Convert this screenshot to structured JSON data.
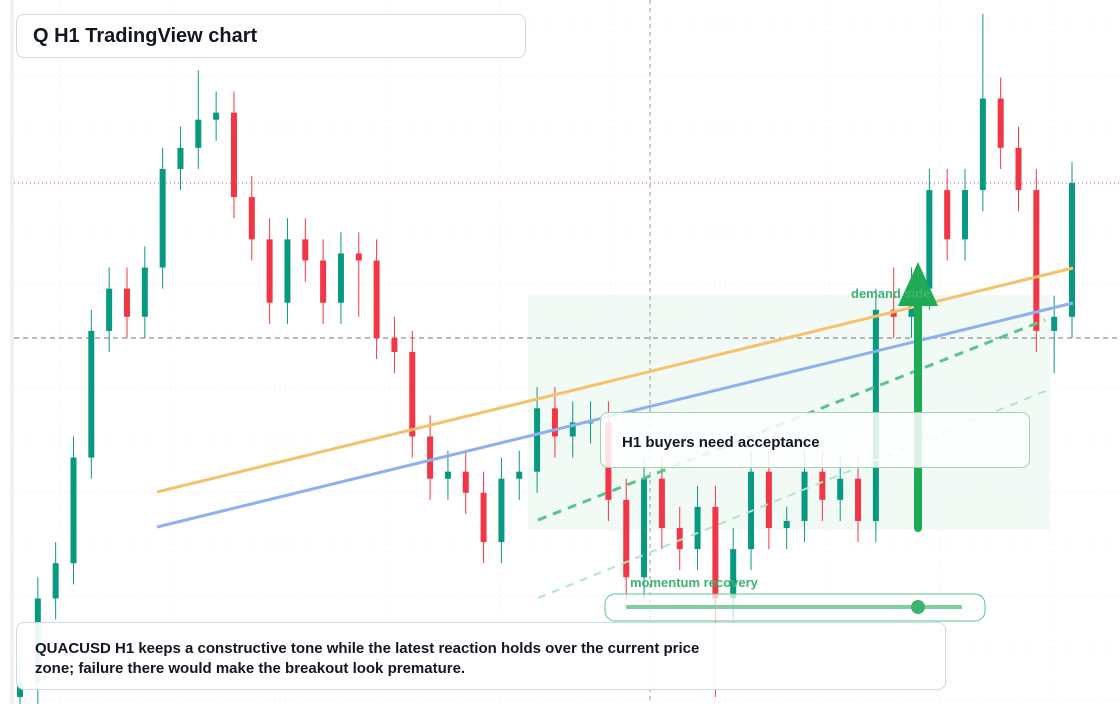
{
  "header": {
    "title": "Q H1 TradingView chart"
  },
  "chart_data": {
    "type": "candlestick",
    "ylim": [
      0,
      100
    ],
    "up_color": "#089981",
    "down_color": "#f23645",
    "open": [
      1,
      3,
      15,
      20,
      35,
      53,
      59,
      55,
      62,
      76,
      79,
      83,
      84,
      72,
      66,
      57,
      66,
      63,
      57,
      64,
      63,
      52,
      50,
      38,
      32,
      33,
      30,
      23,
      32,
      33,
      42,
      38,
      40,
      40,
      29,
      18,
      32,
      25,
      22,
      28,
      15,
      22,
      33,
      25,
      26,
      33,
      29,
      32,
      26,
      56,
      55,
      59,
      73,
      66,
      73,
      86,
      79,
      73,
      53,
      55
    ],
    "high": [
      6,
      18,
      23,
      38,
      56,
      62,
      62,
      65,
      79,
      82,
      90,
      87,
      87,
      75,
      69,
      69,
      69,
      66,
      67,
      67,
      66,
      55,
      53,
      41,
      36,
      36,
      33,
      35,
      36,
      45,
      45,
      43,
      43,
      43,
      32,
      35,
      35,
      28,
      31,
      31,
      25,
      36,
      36,
      28,
      36,
      36,
      35,
      35,
      59,
      62,
      62,
      76,
      76,
      76,
      98,
      89,
      82,
      76,
      58,
      77
    ],
    "low": [
      0,
      0,
      12,
      17,
      32,
      50,
      52,
      52,
      59,
      73,
      76,
      80,
      69,
      63,
      54,
      54,
      60,
      54,
      54,
      55,
      49,
      47,
      35,
      29,
      29,
      27,
      20,
      20,
      29,
      30,
      35,
      35,
      37,
      26,
      15,
      15,
      22,
      19,
      19,
      1,
      12,
      19,
      22,
      22,
      23,
      26,
      26,
      23,
      23,
      52,
      52,
      56,
      63,
      63,
      70,
      76,
      70,
      50,
      47,
      52
    ],
    "close": [
      3,
      15,
      20,
      35,
      53,
      59,
      55,
      62,
      76,
      79,
      83,
      84,
      72,
      66,
      57,
      66,
      63,
      57,
      64,
      63,
      52,
      50,
      38,
      32,
      33,
      30,
      23,
      32,
      33,
      42,
      38,
      40,
      40,
      29,
      18,
      32,
      25,
      22,
      28,
      15,
      22,
      33,
      25,
      26,
      33,
      29,
      32,
      26,
      56,
      55,
      59,
      73,
      66,
      73,
      86,
      79,
      73,
      53,
      55,
      74
    ]
  },
  "annotations": {
    "callout": "H1 buyers need acceptance",
    "demand": "demand side",
    "momentum": "momentum recovery"
  },
  "note": "QUACUSD H1 keeps a constructive tone while the latest reaction holds over the current price zone; failure there would make the breakout look premature."
}
